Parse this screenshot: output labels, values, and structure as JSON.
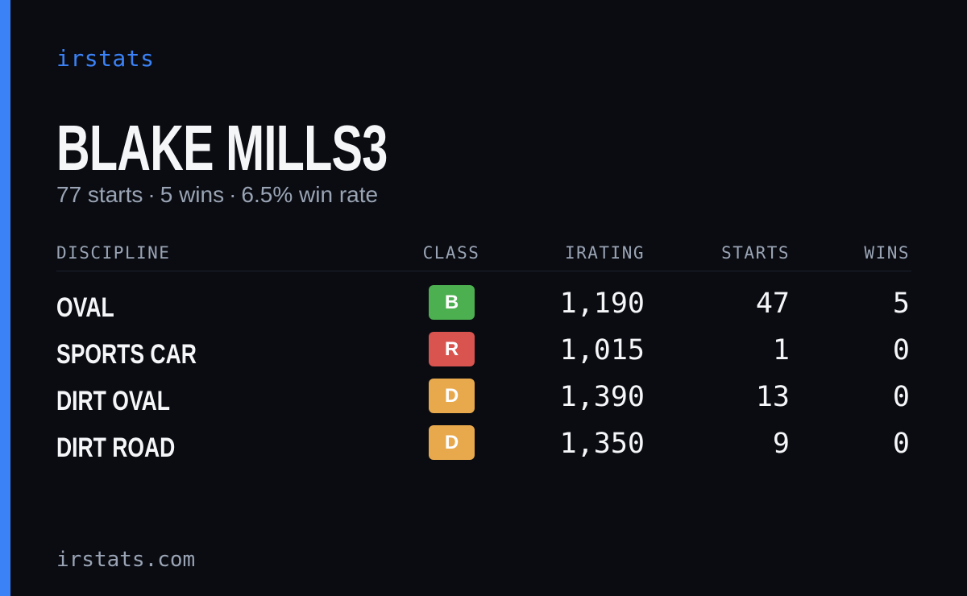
{
  "brand": "irstats",
  "driver": {
    "name": "BLAKE MILLS3"
  },
  "summary": {
    "starts": "77 starts",
    "wins": "5 wins",
    "win_rate": "6.5% win rate",
    "separator": "·"
  },
  "table": {
    "headers": {
      "discipline": "DISCIPLINE",
      "class": "CLASS",
      "irating": "IRATING",
      "starts": "STARTS",
      "wins": "WINS"
    },
    "rows": [
      {
        "discipline": "OVAL",
        "class": "B",
        "class_color": "#4caf50",
        "irating": "1,190",
        "starts": "47",
        "wins": "5"
      },
      {
        "discipline": "SPORTS CAR",
        "class": "R",
        "class_color": "#d9534f",
        "irating": "1,015",
        "starts": "1",
        "wins": "0"
      },
      {
        "discipline": "DIRT OVAL",
        "class": "D",
        "class_color": "#e8a94c",
        "irating": "1,390",
        "starts": "13",
        "wins": "0"
      },
      {
        "discipline": "DIRT ROAD",
        "class": "D",
        "class_color": "#e8a94c",
        "irating": "1,350",
        "starts": "9",
        "wins": "0"
      }
    ]
  },
  "footer": {
    "url": "irstats.com"
  },
  "colors": {
    "accent": "#3b82f6",
    "background": "#0a0c12",
    "text_primary": "#f5f6f8",
    "text_muted": "#9aa4b4"
  }
}
